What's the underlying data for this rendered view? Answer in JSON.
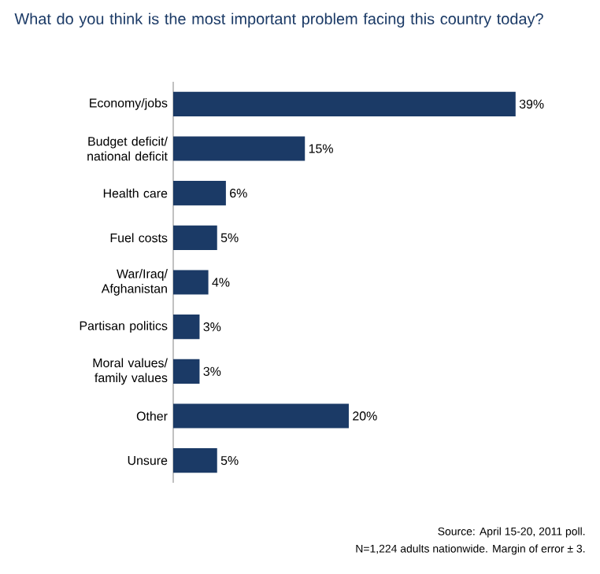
{
  "chart_data": {
    "type": "bar",
    "orientation": "horizontal",
    "title": "What do you think is the most important problem facing this country today?",
    "categories": [
      "Economy/jobs",
      "Budget deficit/ national deficit",
      "Health care",
      "Fuel costs",
      "War/Iraq/ Afghanistan",
      "Partisan politics",
      "Moral values/ family values",
      "Other",
      "Unsure"
    ],
    "values": [
      39,
      15,
      6,
      5,
      4,
      3,
      3,
      20,
      5
    ],
    "value_labels": [
      "39%",
      "15%",
      "6%",
      "5%",
      "4%",
      "3%",
      "3%",
      "20%",
      "5%"
    ],
    "color": "#1b3a66",
    "annotations": [
      "Source: April 15-20, 2011 poll.",
      "N=1,224 adults nationwide. Margin of error ± 3."
    ]
  }
}
